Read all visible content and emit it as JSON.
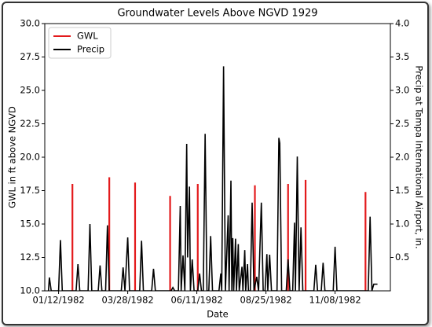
{
  "chart_data": {
    "type": "line",
    "title": "Groundwater Levels Above NGVD 1929",
    "xlabel": "Date",
    "ylabel": "GWL in ft above NGVD",
    "y2label": "Precip at Tampa International Airport, in.",
    "xlim": [
      "1981-12-28",
      "1983-01-07"
    ],
    "xticks": [
      {
        "value": "1982-01-12",
        "label": "01/12/1982"
      },
      {
        "value": "1982-03-28",
        "label": "03/28/1982"
      },
      {
        "value": "1982-06-11",
        "label": "06/11/1982"
      },
      {
        "value": "1982-08-25",
        "label": "08/25/1982"
      },
      {
        "value": "1982-11-08",
        "label": "11/08/1982"
      }
    ],
    "ylim": [
      10,
      30
    ],
    "yticks": [
      {
        "value": 10,
        "label": "10.0"
      },
      12.5,
      {
        "value": 15,
        "label": "15.0"
      },
      17.5,
      {
        "value": 20,
        "label": "20.0"
      },
      22.5,
      {
        "value": 25,
        "label": "25.0"
      },
      27.5,
      {
        "value": 30,
        "label": "30.0"
      }
    ],
    "y2lim": [
      0,
      4
    ],
    "y2ticks": [
      0.5,
      {
        "value": 1,
        "label": "1.0"
      },
      1.5,
      {
        "value": 2,
        "label": "2.0"
      },
      2.5,
      {
        "value": 3,
        "label": "3.0"
      },
      3.5,
      {
        "value": 4,
        "label": "4.0"
      }
    ],
    "legend": "upper left",
    "series": [
      {
        "name": "GWL",
        "color": "#e31a1c",
        "axis": "y",
        "x": [
          "1982-01-27",
          "1982-03-08",
          "1982-04-05",
          "1982-05-13",
          "1982-06-12",
          "1982-08-13",
          "1982-09-18",
          "1982-10-07",
          "1982-12-11"
        ],
        "values": [
          18.0,
          18.5,
          18.1,
          17.1,
          18.0,
          17.9,
          18.0,
          18.3,
          17.4
        ]
      },
      {
        "name": "Precip",
        "color": "#000000",
        "axis": "y2",
        "x": [
          "1982-01-01",
          "1982-01-02",
          "1982-01-04",
          "1982-01-12",
          "1982-01-14",
          "1982-01-16",
          "1982-01-31",
          "1982-02-02",
          "1982-02-04",
          "1982-02-13",
          "1982-02-15",
          "1982-02-17",
          "1982-02-24",
          "1982-02-26",
          "1982-02-28",
          "1982-03-04",
          "1982-03-06",
          "1982-03-08",
          "1982-03-21",
          "1982-03-23",
          "1982-03-25",
          "1982-03-28",
          "1982-03-30",
          "1982-04-10",
          "1982-04-12",
          "1982-04-14",
          "1982-04-23",
          "1982-04-25",
          "1982-04-27",
          "1982-05-14",
          "1982-05-16",
          "1982-05-18",
          "1982-05-22",
          "1982-05-24",
          "1982-05-25",
          "1982-05-27",
          "1982-05-29",
          "1982-05-31",
          "1982-06-01",
          "1982-06-03",
          "1982-06-04",
          "1982-06-06",
          "1982-06-08",
          "1982-06-12",
          "1982-06-14",
          "1982-06-16",
          "1982-06-18",
          "1982-06-20",
          "1982-06-22",
          "1982-06-24",
          "1982-06-26",
          "1982-06-28",
          "1982-07-05",
          "1982-07-07",
          "1982-07-08",
          "1982-07-10",
          "1982-07-12",
          "1982-07-15",
          "1982-07-16",
          "1982-07-18",
          "1982-07-19",
          "1982-07-20",
          "1982-07-21",
          "1982-07-23",
          "1982-07-24",
          "1982-07-26",
          "1982-07-27",
          "1982-07-30",
          "1982-07-31",
          "1982-08-02",
          "1982-08-03",
          "1982-08-05",
          "1982-08-06",
          "1982-08-08",
          "1982-08-10",
          "1982-08-12",
          "1982-08-15",
          "1982-08-17",
          "1982-08-20",
          "1982-08-22",
          "1982-08-24",
          "1982-08-26",
          "1982-08-27",
          "1982-08-29",
          "1982-08-31",
          "1982-09-06",
          "1982-09-08",
          "1982-09-09",
          "1982-09-11",
          "1982-09-16",
          "1982-09-18",
          "1982-09-20",
          "1982-09-23",
          "1982-09-25",
          "1982-09-26",
          "1982-09-28",
          "1982-09-30",
          "1982-10-02",
          "1982-10-04",
          "1982-10-16",
          "1982-10-18",
          "1982-10-20",
          "1982-10-24",
          "1982-10-26",
          "1982-10-28",
          "1982-11-06",
          "1982-11-08",
          "1982-11-10",
          "1982-12-14",
          "1982-12-16",
          "1982-12-18",
          "1982-12-20",
          "1982-12-24"
        ],
        "values": [
          0,
          0.2,
          0,
          0,
          0.76,
          0,
          0,
          0.4,
          0,
          0,
          1.0,
          0,
          0,
          0.38,
          0,
          0,
          0.98,
          0,
          0,
          0.35,
          0,
          0.8,
          0,
          0,
          0.75,
          0,
          0,
          0.33,
          0,
          0,
          0.05,
          0,
          0,
          1.27,
          0,
          0.53,
          0,
          2.2,
          0.5,
          1.56,
          0,
          0.47,
          0,
          0,
          0.26,
          0,
          0,
          2.35,
          0,
          0,
          0.82,
          0,
          0,
          0.26,
          0,
          3.36,
          0,
          1.13,
          0,
          1.65,
          0,
          0.79,
          0,
          0.78,
          0,
          0.7,
          0,
          0.36,
          0,
          0.61,
          0,
          0.4,
          0,
          0,
          1.32,
          0,
          0.21,
          0,
          1.32,
          0,
          0,
          0.55,
          0,
          0.54,
          0,
          0,
          2.29,
          2.21,
          0,
          0,
          0.47,
          0,
          0,
          1.02,
          0,
          2.01,
          0,
          0.95,
          0,
          0,
          0.39,
          0,
          0,
          0.42,
          0,
          0,
          0.66,
          0,
          0,
          1.11,
          0,
          0.1,
          0.1
        ]
      }
    ]
  }
}
